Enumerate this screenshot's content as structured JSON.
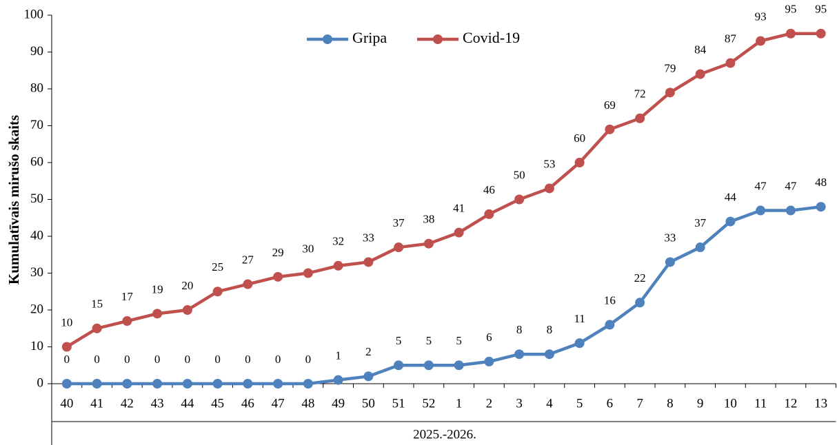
{
  "chart_data": {
    "type": "line",
    "ylabel": "Kumulatīvais mirušo skaits",
    "xlabel": "2025.-2026.",
    "categories": [
      "40",
      "41",
      "42",
      "43",
      "44",
      "45",
      "46",
      "47",
      "48",
      "49",
      "50",
      "51",
      "52",
      "1",
      "2",
      "3",
      "4",
      "5",
      "6",
      "7",
      "8",
      "9",
      "10",
      "11",
      "12",
      "13"
    ],
    "series": [
      {
        "name": "Gripa",
        "color": "#4f81bd",
        "values": [
          0,
          0,
          0,
          0,
          0,
          0,
          0,
          0,
          0,
          1,
          2,
          5,
          5,
          5,
          6,
          8,
          8,
          11,
          16,
          22,
          33,
          37,
          44,
          47,
          47,
          48
        ]
      },
      {
        "name": "Covid-19",
        "color": "#c0504d",
        "values": [
          10,
          15,
          17,
          19,
          20,
          25,
          27,
          29,
          30,
          32,
          33,
          37,
          38,
          41,
          46,
          50,
          53,
          60,
          69,
          72,
          79,
          84,
          87,
          93,
          95,
          95
        ]
      }
    ],
    "ylim": [
      0,
      100
    ],
    "yticks": [
      0,
      10,
      20,
      30,
      40,
      50,
      60,
      70,
      80,
      90,
      100
    ],
    "legend": "top",
    "grid": false
  }
}
